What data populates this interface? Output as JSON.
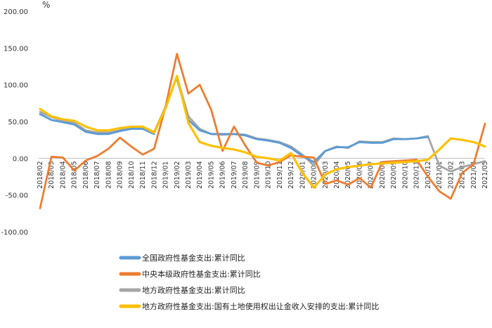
{
  "chart_data": {
    "type": "line",
    "unit_label": "%",
    "ylim": [
      -100,
      200
    ],
    "yticks": [
      -100,
      -50,
      0,
      50,
      100,
      150,
      200
    ],
    "ytick_labels": [
      "-100.00",
      "-50.00",
      "0.00",
      "50.00",
      "100.00",
      "150.00",
      "200.00"
    ],
    "grid": false,
    "legend_position": "bottom",
    "x": [
      "2018/02",
      "2018/03",
      "2018/04",
      "2018/05",
      "2018/06",
      "2018/07",
      "2018/08",
      "2018/09",
      "2018/10",
      "2018/11",
      "2018/12",
      "2019/01",
      "2019/02",
      "2019/03",
      "2019/04",
      "2019/05",
      "2019/06",
      "2019/07",
      "2019/08",
      "2019/09",
      "2019/10",
      "2019/11",
      "2019/12",
      "2020/01",
      "2020/02",
      "2020/03",
      "2020/04",
      "2020/05",
      "2020/06",
      "2020/07",
      "2020/08",
      "2020/09",
      "2020/10",
      "2020/11",
      "2020/12",
      "2021/01",
      "2021/02",
      "2021/03",
      "2021/04",
      "2021/05"
    ],
    "x_tick_labels": [
      "2018/02",
      "2018/03",
      "2018/04",
      "2018/05",
      "2018/06",
      "2018/07",
      "2018/08",
      "2018/09",
      "2018/10",
      "2018/11",
      "2018/12",
      "2019/01",
      "2019/02",
      "2019/03",
      "2019/04",
      "2019/05",
      "2019/06",
      "2019/07",
      "2019/08",
      "2019/09",
      "2019/10",
      "2019/11",
      "2019/12",
      "2020/01",
      "2020/02",
      "2020/03",
      "2020/04",
      "2020/05",
      "2020/06",
      "2020/07",
      "2020/08",
      "2020/09",
      "2020/10",
      "2020/11",
      "2020/12",
      "2021/01",
      "2021/02",
      "2021/03",
      "2021/04",
      "2021/05"
    ],
    "series": [
      {
        "name": "全国政府性基金支出:累计同比",
        "color": "#5b9bd5",
        "values": [
          60,
          52,
          49,
          46,
          36,
          33,
          33,
          37,
          40,
          40,
          33,
          null,
          108,
          52,
          38,
          33,
          33,
          33,
          31,
          26,
          24,
          21,
          14,
          3,
          -5,
          10,
          15,
          15,
          22,
          21,
          21,
          26,
          26,
          27,
          29,
          null,
          null,
          null,
          null,
          null
        ]
      },
      {
        "name": "中央本级政府性基金支出:累计同比",
        "color": "#ed7d31",
        "values": [
          -68,
          2,
          1,
          -17,
          -3,
          3,
          13,
          28,
          16,
          5,
          13,
          70,
          142,
          88,
          100,
          66,
          10,
          43,
          17,
          -6,
          -10,
          -5,
          4,
          2,
          1,
          -35,
          -30,
          -36,
          -27,
          -40,
          -5,
          -4,
          -3,
          -2,
          -25,
          -45,
          -55,
          -20,
          -8,
          47
        ]
      },
      {
        "name": "地方政府性基金支出:累计同比",
        "color": "#a5a5a5",
        "values": [
          63,
          56,
          51,
          48,
          38,
          35,
          35,
          38,
          42,
          42,
          36,
          70,
          111,
          57,
          40,
          33,
          32,
          33,
          32,
          27,
          25,
          22,
          16,
          5,
          -10,
          10,
          16,
          14,
          23,
          22,
          22,
          27,
          26,
          27,
          30,
          -10,
          -18,
          -12,
          -8,
          -4
        ]
      },
      {
        "name": "地方政府性基金支出:国有土地使用权出让金收入安排的支出:累计同比",
        "color": "#ffc000",
        "values": [
          67,
          57,
          53,
          51,
          43,
          38,
          38,
          41,
          43,
          43,
          35,
          68,
          112,
          48,
          22,
          17,
          14,
          12,
          8,
          2,
          0,
          -3,
          7,
          -20,
          -40,
          -22,
          -15,
          -12,
          -10,
          -8,
          -7,
          -6,
          -5,
          -4,
          -2,
          12,
          27,
          25,
          22,
          16
        ]
      }
    ]
  }
}
